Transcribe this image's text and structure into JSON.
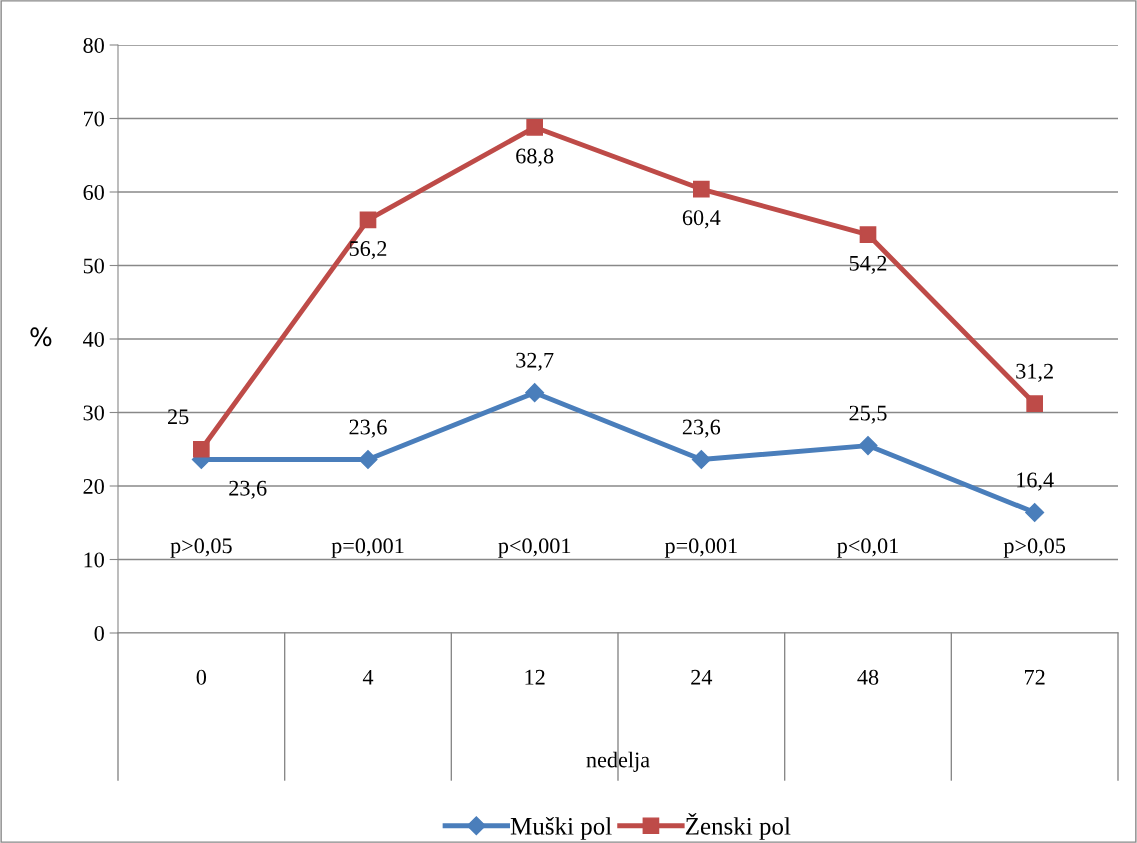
{
  "chart_data": {
    "type": "line",
    "xlabel": "nedelja",
    "ylabel": "%",
    "categories": [
      "0",
      "4",
      "12",
      "24",
      "48",
      "72"
    ],
    "series": [
      {
        "name": "Muški pol",
        "color": "#4a7ebb",
        "marker": "diamond",
        "values": [
          23.6,
          23.6,
          32.7,
          23.6,
          25.5,
          16.4
        ],
        "value_labels": [
          "23,6",
          "23,6",
          "32,7",
          "23,6",
          "25,5",
          "16,4"
        ]
      },
      {
        "name": "Ženski pol",
        "color": "#be4b48",
        "marker": "square",
        "values": [
          25,
          56.2,
          68.8,
          60.4,
          54.2,
          31.2
        ],
        "value_labels": [
          "25",
          "56,2",
          "68,8",
          "60,4",
          "54,2",
          "31,2"
        ]
      }
    ],
    "ylim": [
      0,
      80
    ],
    "yticks": [
      0,
      10,
      20,
      30,
      40,
      50,
      60,
      70,
      80
    ],
    "grid": "y",
    "legend": "bottom",
    "line_style": "solid",
    "annotations": [
      "p>0,05",
      "p=0,001",
      "p<0,001",
      "p=0,001",
      "p<0,01",
      "p>0,05"
    ]
  }
}
